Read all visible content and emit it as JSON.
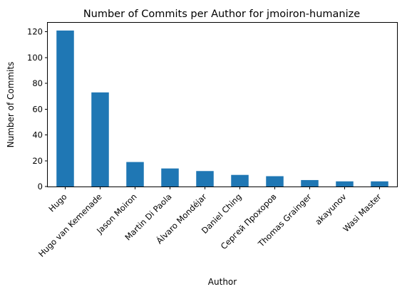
{
  "chart_data": {
    "type": "bar",
    "title": "Number of Commits per Author for jmoiron-humanize",
    "xlabel": "Author",
    "ylabel": "Number of Commits",
    "categories": [
      "Hugo",
      "Hugo van Kemenade",
      "Jason Moiron",
      "Martin Di Paola",
      "Álvaro Mondéjar",
      "Daniel Ching",
      "Сергей Прохоров",
      "Thomas Grainger",
      "akayunov",
      "Wasi Master"
    ],
    "values": [
      121,
      73,
      19,
      14,
      12,
      9,
      8,
      5,
      4,
      4
    ],
    "yticks": [
      0,
      20,
      40,
      60,
      80,
      100,
      120
    ],
    "ylim": [
      0,
      127
    ],
    "grid": false,
    "legend": false,
    "bar_color": "#1f77b4"
  }
}
